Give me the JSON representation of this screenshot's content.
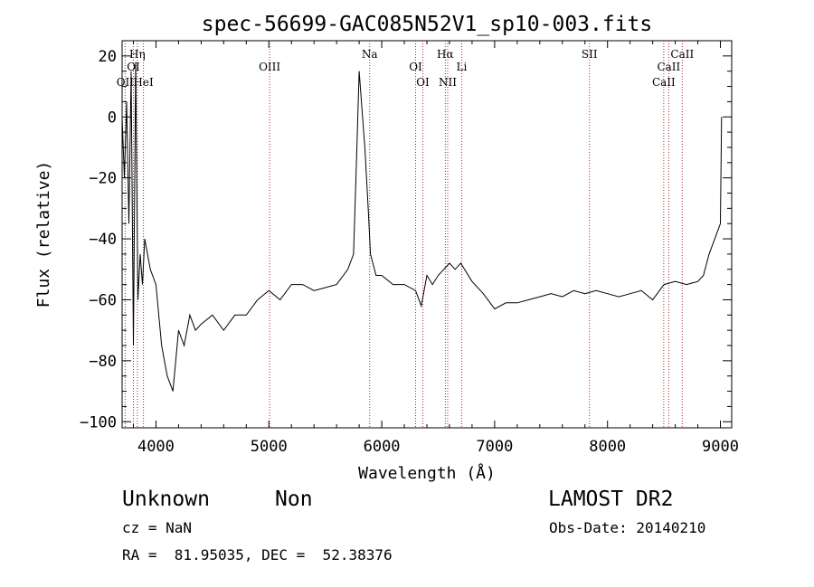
{
  "chart_data": {
    "type": "line",
    "title": "spec-56699-GAC085N52V1_sp10-003.fits",
    "xlabel": "Wavelength (Å)",
    "ylabel": "Flux (relative)",
    "xlim": [
      3700,
      9100
    ],
    "ylim": [
      -102,
      25
    ],
    "x_ticks": [
      4000,
      5000,
      6000,
      7000,
      8000,
      9000
    ],
    "y_ticks": [
      -100,
      -80,
      -60,
      -40,
      -20,
      0,
      20
    ],
    "grid": false,
    "line_color": "#000000",
    "marker_color": "#b22222",
    "lines": [
      {
        "label": "OII",
        "wavelength": 3727
      },
      {
        "label": "Hη",
        "wavelength": 3835
      },
      {
        "label": "OI",
        "wavelength": 3800
      },
      {
        "label": "HeI",
        "wavelength": 3889
      },
      {
        "label": "OIII",
        "wavelength": 5007
      },
      {
        "label": "Na",
        "wavelength": 5893
      },
      {
        "label": "OI",
        "wavelength": 6300
      },
      {
        "label": "OI",
        "wavelength": 6364
      },
      {
        "label": "Hα",
        "wavelength": 6563
      },
      {
        "label": "NII",
        "wavelength": 6584
      },
      {
        "label": "Li",
        "wavelength": 6708
      },
      {
        "label": "SII",
        "wavelength": 7840
      },
      {
        "label": "CaII",
        "wavelength": 8498
      },
      {
        "label": "CaII",
        "wavelength": 8542
      },
      {
        "label": "CaII",
        "wavelength": 8662
      }
    ],
    "series": [
      {
        "x": [
          3700,
          3720,
          3740,
          3760,
          3780,
          3800,
          3820,
          3840,
          3860,
          3880,
          3900,
          3950,
          4000,
          4050,
          4100,
          4150,
          4200,
          4250,
          4300,
          4350,
          4400,
          4500,
          4600,
          4700,
          4800,
          4900,
          5000,
          5100,
          5200,
          5300,
          5400,
          5500,
          5600,
          5700,
          5750,
          5780,
          5800,
          5820,
          5850,
          5880,
          5900,
          5950,
          6000,
          6100,
          6200,
          6300,
          6350,
          6400,
          6450,
          6500,
          6550,
          6600,
          6650,
          6700,
          6800,
          6900,
          7000,
          7100,
          7200,
          7300,
          7400,
          7500,
          7600,
          7700,
          7800,
          7900,
          8000,
          8100,
          8200,
          8300,
          8400,
          8500,
          8600,
          8700,
          8800,
          8850,
          8900,
          8950,
          9000,
          9010
        ],
        "y": [
          0,
          -20,
          5,
          -35,
          15,
          -75,
          18,
          -60,
          -45,
          -55,
          -40,
          -50,
          -55,
          -75,
          -85,
          -90,
          -70,
          -75,
          -65,
          -70,
          -68,
          -65,
          -70,
          -65,
          -65,
          -60,
          -57,
          -60,
          -55,
          -55,
          -57,
          -56,
          -55,
          -50,
          -45,
          -10,
          15,
          5,
          -10,
          -30,
          -45,
          -52,
          -52,
          -55,
          -55,
          -57,
          -62,
          -52,
          -55,
          -52,
          -50,
          -48,
          -50,
          -48,
          -54,
          -58,
          -63,
          -61,
          -61,
          -60,
          -59,
          -58,
          -59,
          -57,
          -58,
          -57,
          -58,
          -59,
          -58,
          -57,
          -60,
          -55,
          -54,
          -55,
          -54,
          -52,
          -45,
          -40,
          -35,
          0
        ]
      }
    ]
  },
  "info": {
    "object_class": "Unknown",
    "subclass": "Non",
    "survey": "LAMOST DR2",
    "cz": "cz = NaN",
    "obs_date": "Obs-Date: 20140210",
    "coords": "RA =  81.95035, DEC =  52.38376"
  }
}
